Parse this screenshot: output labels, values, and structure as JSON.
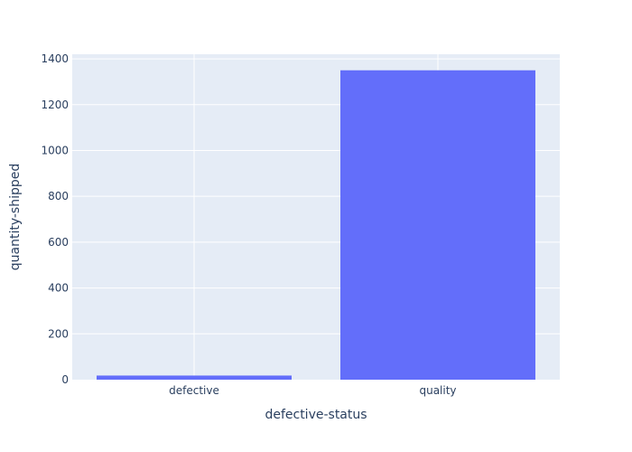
{
  "chart_data": {
    "type": "bar",
    "categories": [
      "defective",
      "quality"
    ],
    "values": [
      18,
      1350
    ],
    "title": "",
    "xlabel": "defective-status",
    "ylabel": "quantity-shipped",
    "ylim": [
      0,
      1420
    ],
    "yticks": [
      0,
      200,
      400,
      600,
      800,
      1000,
      1200,
      1400
    ],
    "grid": true,
    "colors": {
      "bar": "#636efa",
      "plot_background": "#e5ecf6",
      "grid": "#ffffff",
      "text": "#2a3f5f"
    }
  }
}
